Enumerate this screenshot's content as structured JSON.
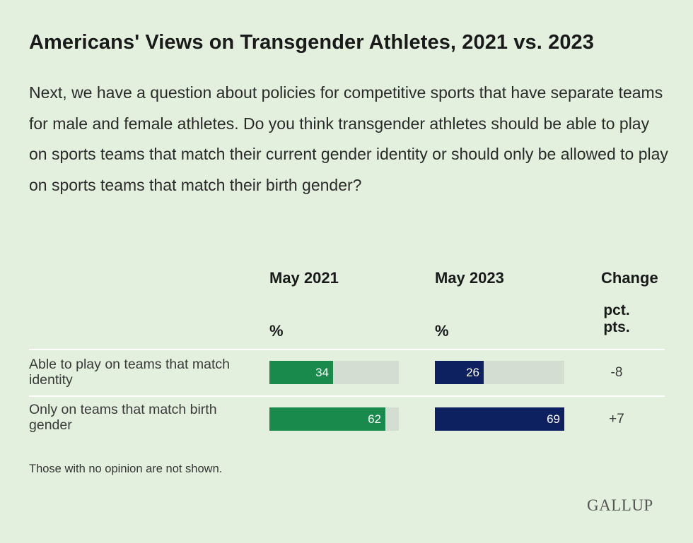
{
  "chart": {
    "title": "Americans' Views on Transgender Athletes, 2021 vs. 2023",
    "question": "Next, we have a question about policies for competitive sports that have separate teams for male and female athletes. Do you think transgender athletes should be able to play on sports teams that match their current gender identity or should only be allowed to play on sports teams that match their birth gender?",
    "columns": {
      "may2021": "May 2021",
      "may2023": "May 2023",
      "change": "Change",
      "pct_2021": "%",
      "pct_2023": "%",
      "change_unit_line1": "pct.",
      "change_unit_line2": "pts."
    },
    "note": "Those with no opinion are not shown.",
    "logo": "GALLUP",
    "colors": {
      "may2021": "#1a8a4c",
      "may2023": "#0d2160",
      "track": "#d4ddd2",
      "background": "#e3f0de"
    }
  },
  "chart_data": {
    "type": "bar",
    "categories": [
      "Able to play on teams that match identity",
      "Only on teams that match birth gender"
    ],
    "series": [
      {
        "name": "May 2021",
        "values": [
          34,
          62
        ]
      },
      {
        "name": "May 2023",
        "values": [
          26,
          69
        ]
      }
    ],
    "change": [
      "-8",
      "+7"
    ],
    "ylim": [
      0,
      70
    ]
  }
}
